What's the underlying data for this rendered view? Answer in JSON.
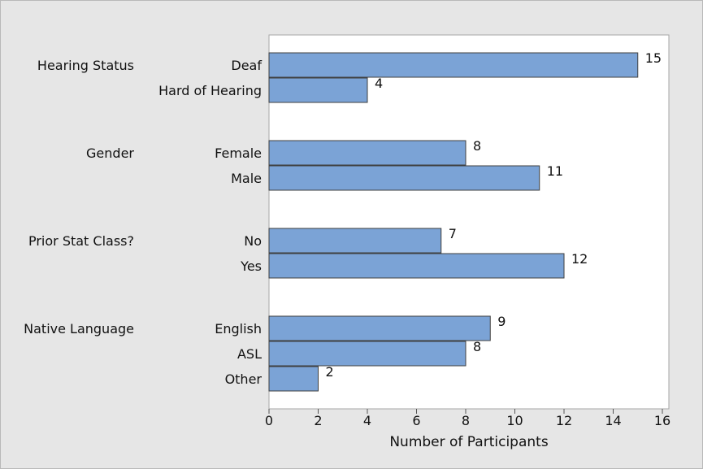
{
  "chart_data": {
    "type": "bar",
    "orientation": "horizontal",
    "xlabel": "Number of Participants",
    "xlim": [
      0,
      16
    ],
    "xticks": [
      0,
      2,
      4,
      6,
      8,
      10,
      12,
      14,
      16
    ],
    "grid": false,
    "legend": "none",
    "bar_color": "#7ba3d6",
    "bar_edge_color": "#3f3f3f",
    "plot_background": "#ffffff",
    "figure_background": "#e6e6e6",
    "groups": [
      {
        "label": "Hearing Status",
        "categories": [
          "Deaf",
          "Hard of Hearing"
        ],
        "values": [
          15,
          4
        ]
      },
      {
        "label": "Gender",
        "categories": [
          "Female",
          "Male"
        ],
        "values": [
          8,
          11
        ]
      },
      {
        "label": "Prior Stat Class?",
        "categories": [
          "No",
          "Yes"
        ],
        "values": [
          7,
          12
        ]
      },
      {
        "label": "Native Language",
        "categories": [
          "English",
          "ASL",
          "Other"
        ],
        "values": [
          9,
          8,
          2
        ]
      }
    ]
  }
}
